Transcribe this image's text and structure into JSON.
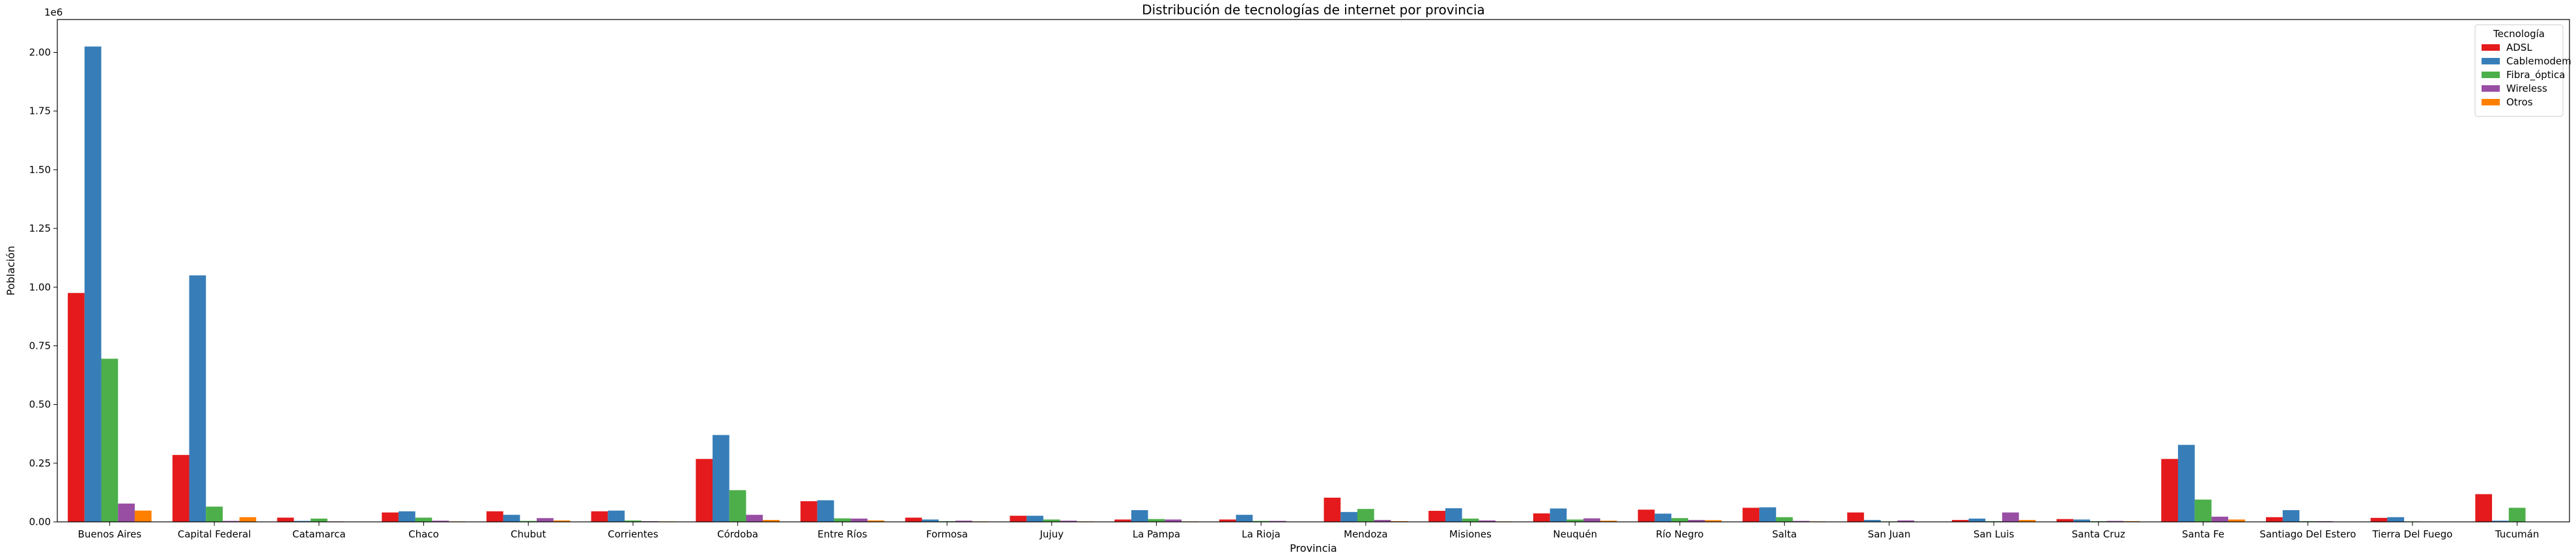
{
  "chart_data": {
    "type": "bar",
    "title": "Distribución de tecnologías de internet por provincia",
    "xlabel": "Provincia",
    "ylabel": "Población",
    "y_offset_label": "1e6",
    "ylim": [
      0,
      2.14
    ],
    "yticks": [
      0.0,
      0.25,
      0.5,
      0.75,
      1.0,
      1.25,
      1.5,
      1.75,
      2.0
    ],
    "ytick_labels": [
      "0.00",
      "0.25",
      "0.50",
      "0.75",
      "1.00",
      "1.25",
      "1.50",
      "1.75",
      "2.00"
    ],
    "grid": false,
    "legend": {
      "title": "Tecnología",
      "placement": "top-right"
    },
    "categories": [
      "Buenos Aires",
      "Capital Federal",
      "Catamarca",
      "Chaco",
      "Chubut",
      "Corrientes",
      "Córdoba",
      "Entre Ríos",
      "Formosa",
      "Jujuy",
      "La Pampa",
      "La Rioja",
      "Mendoza",
      "Misiones",
      "Neuquén",
      "Río Negro",
      "Salta",
      "San Juan",
      "San Luis",
      "Santa Cruz",
      "Santa Fe",
      "Santiago Del Estero",
      "Tierra Del Fuego",
      "Tucumán"
    ],
    "series": [
      {
        "name": "ADSL",
        "color": "#e41a1c",
        "values": [
          0.975,
          0.285,
          0.018,
          0.04,
          0.045,
          0.045,
          0.268,
          0.088,
          0.018,
          0.026,
          0.01,
          0.01,
          0.103,
          0.047,
          0.036,
          0.052,
          0.06,
          0.04,
          0.008,
          0.012,
          0.268,
          0.02,
          0.017,
          0.118
        ]
      },
      {
        "name": "Cablemodem",
        "color": "#377eb8",
        "values": [
          2.025,
          1.05,
          0.004,
          0.045,
          0.03,
          0.048,
          0.37,
          0.092,
          0.01,
          0.026,
          0.05,
          0.03,
          0.042,
          0.058,
          0.057,
          0.035,
          0.062,
          0.008,
          0.014,
          0.01,
          0.328,
          0.05,
          0.02,
          0.005
        ]
      },
      {
        "name": "Fibra_óptica",
        "color": "#4daf4a",
        "values": [
          0.695,
          0.065,
          0.014,
          0.018,
          0.004,
          0.006,
          0.135,
          0.015,
          0.003,
          0.01,
          0.012,
          0.004,
          0.055,
          0.014,
          0.01,
          0.016,
          0.02,
          0.002,
          0.003,
          0.003,
          0.095,
          0.003,
          0.002,
          0.06
        ]
      },
      {
        "name": "Wireless",
        "color": "#984ea3",
        "values": [
          0.078,
          0.004,
          0.002,
          0.005,
          0.016,
          0.003,
          0.03,
          0.014,
          0.005,
          0.005,
          0.01,
          0.004,
          0.008,
          0.006,
          0.015,
          0.008,
          0.004,
          0.006,
          0.04,
          0.004,
          0.022,
          0.003,
          0.001,
          0.001
        ]
      },
      {
        "name": "Otros",
        "color": "#ff7f00",
        "values": [
          0.048,
          0.02,
          0.001,
          0.002,
          0.006,
          0.002,
          0.008,
          0.006,
          0.002,
          0.002,
          0.002,
          0.001,
          0.003,
          0.002,
          0.005,
          0.007,
          0.002,
          0.001,
          0.008,
          0.003,
          0.01,
          0.001,
          0.0,
          0.0
        ]
      }
    ]
  }
}
